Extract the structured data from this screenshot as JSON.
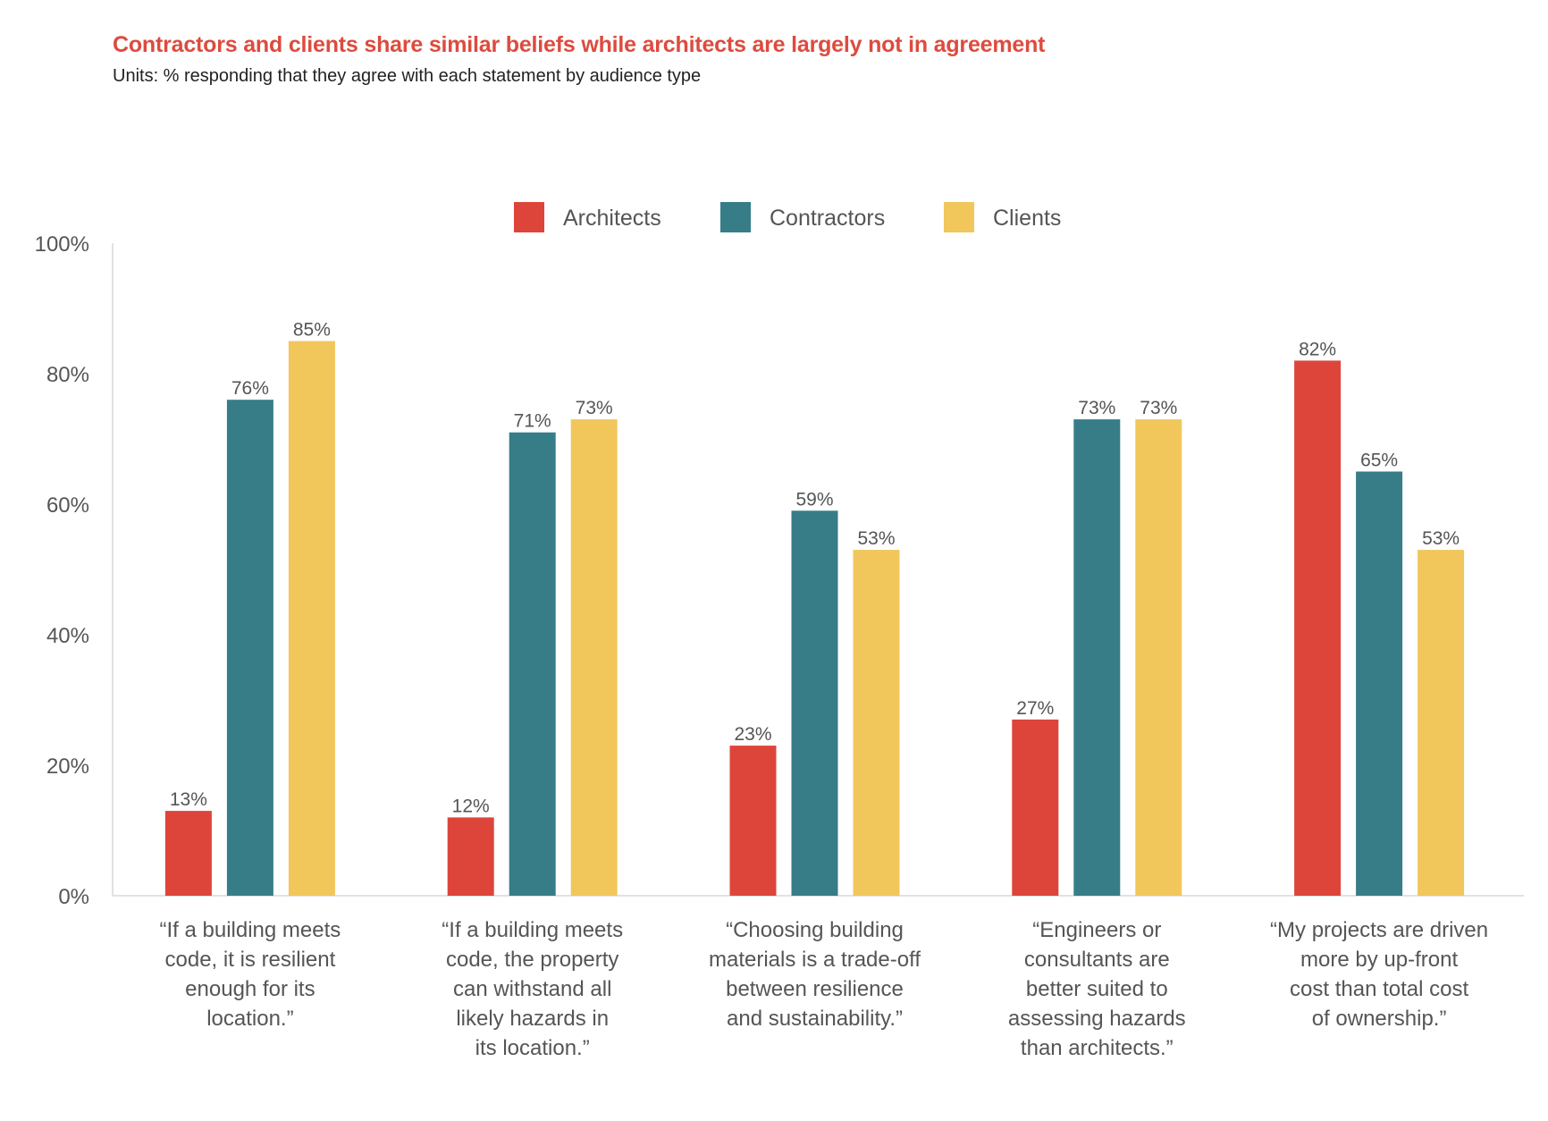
{
  "chart_data": {
    "type": "bar",
    "title": "Contractors and clients share similar beliefs while architects are largely not in agreement",
    "subtitle": "Units: % responding that they agree with each statement by audience type",
    "xlabel": "",
    "ylabel": "",
    "ylim": [
      0,
      100
    ],
    "yticks": [
      0,
      20,
      40,
      60,
      80,
      100
    ],
    "ytick_labels": [
      "0%",
      "20%",
      "40%",
      "60%",
      "80%",
      "100%"
    ],
    "grid": false,
    "legend_position": "top-center",
    "categories": [
      [
        "“If a building meets",
        "code, it is resilient",
        "enough for its",
        "location.”"
      ],
      [
        "“If a building meets",
        "code, the property",
        "can withstand all",
        "likely hazards in",
        "its location.”"
      ],
      [
        "“Choosing building",
        "materials is a trade-off",
        "between resilience",
        "and sustainability.”"
      ],
      [
        "“Engineers or",
        "consultants are",
        "better suited to",
        "assessing hazards",
        "than architects.”"
      ],
      [
        "“My projects are driven",
        "more by up-front",
        "cost than total cost",
        "of ownership.”"
      ]
    ],
    "series": [
      {
        "name": "Architects",
        "color": "#dd453b",
        "values": [
          13,
          12,
          23,
          27,
          82
        ],
        "labels": [
          "13%",
          "12%",
          "23%",
          "27%",
          "82%"
        ]
      },
      {
        "name": "Contractors",
        "color": "#367d88",
        "values": [
          76,
          71,
          59,
          73,
          65
        ],
        "labels": [
          "76%",
          "71%",
          "59%",
          "73%",
          "65%"
        ]
      },
      {
        "name": "Clients",
        "color": "#f1c75c",
        "values": [
          85,
          73,
          53,
          73,
          53
        ],
        "labels": [
          "85%",
          "73%",
          "53%",
          "73%",
          "53%"
        ]
      }
    ]
  }
}
